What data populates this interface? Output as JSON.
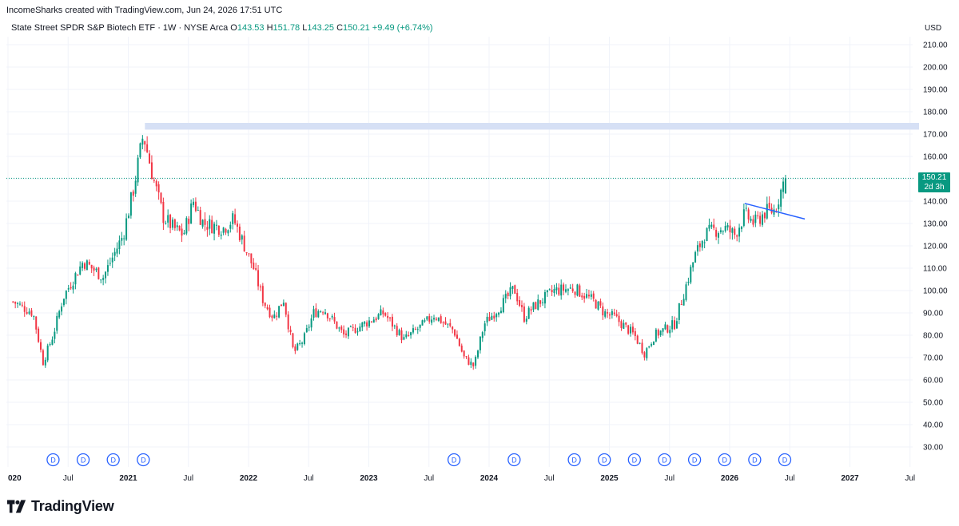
{
  "header": {
    "attribution": "IncomeSharks created with TradingView.com, Jun 24, 2026 17:51 UTC"
  },
  "legend": {
    "symbol": "State Street SPDR S&P Biotech ETF · 1W · NYSE Arca",
    "o_label": "O",
    "o_value": "143.53",
    "h_label": "H",
    "h_value": "151.78",
    "l_label": "L",
    "l_value": "143.25",
    "c_label": "C",
    "c_value": "150.21",
    "change": "+9.49 (+6.74%)"
  },
  "price_axis": {
    "currency": "USD",
    "last_price": "150.21",
    "countdown": "2d 3h"
  },
  "colors": {
    "up": "#089981",
    "down": "#f23645",
    "resistance": "#d6e0f5",
    "trendline": "#2962ff",
    "dividend": "#2962ff",
    "grid": "#f0f3fa"
  },
  "branding": {
    "name": "TradingView"
  },
  "chart_data": {
    "type": "candlestick",
    "timeframe": "1W",
    "ylim": [
      20,
      215
    ],
    "y_ticks": [
      "30.00",
      "40.00",
      "50.00",
      "60.00",
      "70.00",
      "80.00",
      "90.00",
      "100.00",
      "110.00",
      "120.00",
      "130.00",
      "140.00",
      "150.00",
      "160.00",
      "170.00",
      "180.00",
      "190.00",
      "200.00",
      "210.00"
    ],
    "x_ticks": [
      "020",
      "Jul",
      "2021",
      "Jul",
      "2022",
      "Jul",
      "2023",
      "Jul",
      "2024",
      "Jul",
      "2025",
      "Jul",
      "2026",
      "Jul",
      "2027",
      "Jul"
    ],
    "close_path": [
      [
        "2020-01",
        95
      ],
      [
        "2020-03",
        90
      ],
      [
        "2020-04",
        68
      ],
      [
        "2020-05",
        80
      ],
      [
        "2020-06",
        97
      ],
      [
        "2020-08",
        113
      ],
      [
        "2020-10",
        106
      ],
      [
        "2020-12",
        125
      ],
      [
        "2021-01",
        145
      ],
      [
        "2021-02",
        170
      ],
      [
        "2021-03",
        150
      ],
      [
        "2021-04",
        133
      ],
      [
        "2021-05",
        128
      ],
      [
        "2021-06",
        125
      ],
      [
        "2021-07",
        140
      ],
      [
        "2021-08",
        130
      ],
      [
        "2021-10",
        128
      ],
      [
        "2021-11",
        132
      ],
      [
        "2022-01",
        110
      ],
      [
        "2022-02",
        95
      ],
      [
        "2022-03",
        88
      ],
      [
        "2022-04",
        96
      ],
      [
        "2022-05",
        72
      ],
      [
        "2022-06",
        78
      ],
      [
        "2022-07",
        90
      ],
      [
        "2022-08",
        92
      ],
      [
        "2022-10",
        80
      ],
      [
        "2022-12",
        85
      ],
      [
        "2023-02",
        90
      ],
      [
        "2023-04",
        78
      ],
      [
        "2023-06",
        85
      ],
      [
        "2023-07",
        89
      ],
      [
        "2023-09",
        82
      ],
      [
        "2023-10",
        70
      ],
      [
        "2023-11",
        66
      ],
      [
        "2023-12",
        85
      ],
      [
        "2024-02",
        95
      ],
      [
        "2024-03",
        101
      ],
      [
        "2024-04",
        88
      ],
      [
        "2024-05",
        93
      ],
      [
        "2024-07",
        100
      ],
      [
        "2024-09",
        101
      ],
      [
        "2024-11",
        95
      ],
      [
        "2024-12",
        90
      ],
      [
        "2025-01",
        88
      ],
      [
        "2025-03",
        80
      ],
      [
        "2025-04",
        72
      ],
      [
        "2025-05",
        80
      ],
      [
        "2025-07",
        85
      ],
      [
        "2025-08",
        100
      ],
      [
        "2025-09",
        115
      ],
      [
        "2025-10",
        125
      ],
      [
        "2025-11",
        127
      ],
      [
        "2025-12",
        128
      ],
      [
        "2026-01",
        125
      ],
      [
        "2026-02",
        134
      ],
      [
        "2026-03",
        130
      ],
      [
        "2026-04",
        135
      ],
      [
        "2026-05",
        136
      ],
      [
        "2026-06",
        150.21
      ]
    ],
    "last_bar": {
      "open": 143.53,
      "high": 151.78,
      "low": 143.25,
      "close": 150.21,
      "change": 9.49,
      "change_pct": 6.74
    },
    "resistance_zone": {
      "from": 172,
      "to": 175,
      "start": "2021-02"
    },
    "trendline": {
      "start": [
        "2026-02",
        139
      ],
      "end": [
        "2026-08",
        132
      ]
    },
    "current_price_line": 150.21,
    "dividend_markers": [
      "2020-05",
      "2020-08",
      "2020-11",
      "2021-02",
      "2023-09",
      "2024-03",
      "2024-09",
      "2024-12",
      "2025-03",
      "2025-06",
      "2025-09",
      "2025-12",
      "2026-03",
      "2026-06"
    ],
    "dividend_label": "D"
  }
}
